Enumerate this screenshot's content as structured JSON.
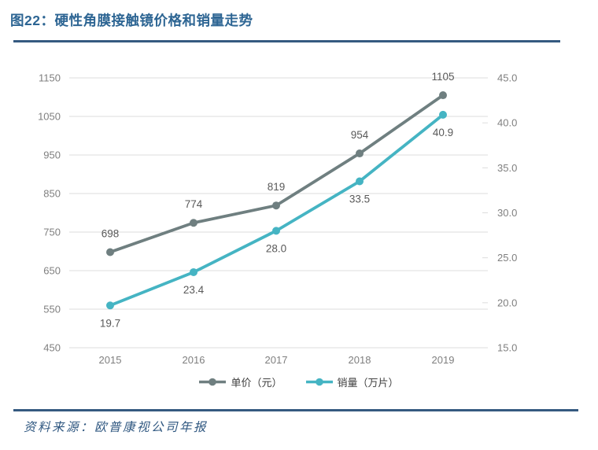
{
  "header": {
    "title": "图22：硬性角膜接触镜价格和销量走势"
  },
  "chart_data": {
    "type": "line",
    "title": "硬性角膜接触镜价格和销量走势",
    "categories": [
      "2015",
      "2016",
      "2017",
      "2018",
      "2019"
    ],
    "series": [
      {
        "key": "unit-price",
        "name": "单价（元）",
        "axis": "left",
        "color": "#6F7F80",
        "values": [
          698,
          774,
          819,
          954,
          1105
        ],
        "labels": [
          "698",
          "774",
          "819",
          "954",
          "1105"
        ],
        "label_side": "above"
      },
      {
        "key": "sales-volume",
        "name": "销量（万片）",
        "axis": "right",
        "color": "#45B4C3",
        "values": [
          19.7,
          23.4,
          28.0,
          33.5,
          40.9
        ],
        "labels": [
          "19.7",
          "23.4",
          "28.0",
          "33.5",
          "40.9"
        ],
        "label_side": "below"
      }
    ],
    "left_axis": {
      "min": 450,
      "max": 1150,
      "tick_labels": [
        "1150",
        "1050",
        "950",
        "850",
        "750",
        "650",
        "550",
        "450"
      ]
    },
    "right_axis": {
      "min": 15.0,
      "max": 45.0,
      "tick_labels": [
        "45.0",
        "40.0",
        "35.0",
        "30.0",
        "25.0",
        "20.0",
        "15.0"
      ]
    },
    "grid": true,
    "legend_position": "bottom-center"
  },
  "colors": {
    "title": "#2D6593",
    "rule": "#355A80",
    "grid": "#DCDCDC",
    "axis_text": "#7F7F7F",
    "data_label": "#595959",
    "legend_text": "#3F3F3F",
    "source_text": "#2F5780"
  },
  "footer": {
    "source": "资料来源：欧普康视公司年报"
  }
}
